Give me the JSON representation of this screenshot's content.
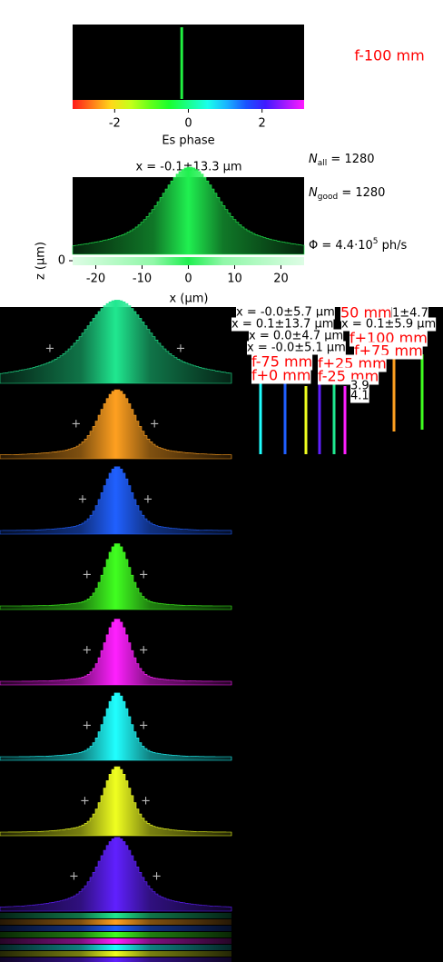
{
  "top_panel": {
    "label": "f-100 mm",
    "xlim": [
      -3.1416,
      3.1416
    ],
    "xticks": [
      -2,
      0,
      2
    ],
    "xlabel": "Es phase",
    "phase": -0.18,
    "color": "#20f040"
  },
  "profile_panel": {
    "title": "x = -0.1±13.3 μm",
    "xlim": [
      -25,
      25
    ],
    "xticks": [
      -20,
      -10,
      0,
      10,
      20
    ],
    "xlabel": "x (μm)",
    "ylabel": "z (μm)",
    "yticks": [
      0
    ],
    "color": "#20f050"
  },
  "stats": {
    "n_all": {
      "symbol": "N",
      "subscript": "all",
      "value": 1280
    },
    "n_good": {
      "symbol": "N",
      "subscript": "good",
      "value": 1280
    },
    "flux": {
      "symbol": "Φ",
      "mantissa": 4.4,
      "exponent": 5,
      "unit": "ph/s"
    }
  },
  "panels": [
    {
      "color": "#20e890"
    },
    {
      "color": "#ffa020"
    },
    {
      "color": "#2060ff"
    },
    {
      "color": "#40ff20"
    },
    {
      "color": "#ff20ff"
    },
    {
      "color": "#20ffff"
    },
    {
      "color": "#f0ff20"
    },
    {
      "color": "#6020ff"
    }
  ],
  "overlay_labels": [
    {
      "text": "x = -0.0±5.7 μm",
      "color": "#000"
    },
    {
      "text": "50 mm",
      "color": "#f00"
    },
    {
      "text": "1±4.7",
      "color": "#000"
    },
    {
      "text": "x = 0.1±13.7 μm",
      "color": "#000"
    },
    {
      "text": "x = 0.1±5.9 μm",
      "color": "#000"
    },
    {
      "text": "f+100 mm",
      "color": "#f00"
    },
    {
      "text": "x = 0.0±4.7 μm",
      "color": "#000"
    },
    {
      "text": "f+75 mm",
      "color": "#f00"
    },
    {
      "text": "x = -0.0±5.1 μm",
      "color": "#000"
    },
    {
      "text": "f-75 mm",
      "color": "#f00"
    },
    {
      "text": "f+25 mm",
      "color": "#f00"
    },
    {
      "text": "f+0 mm",
      "color": "#f00"
    },
    {
      "text": "f-25 mm",
      "color": "#f00"
    },
    {
      "text": "3.9",
      "color": "#000"
    },
    {
      "text": "4.1",
      "color": "#000"
    }
  ]
}
